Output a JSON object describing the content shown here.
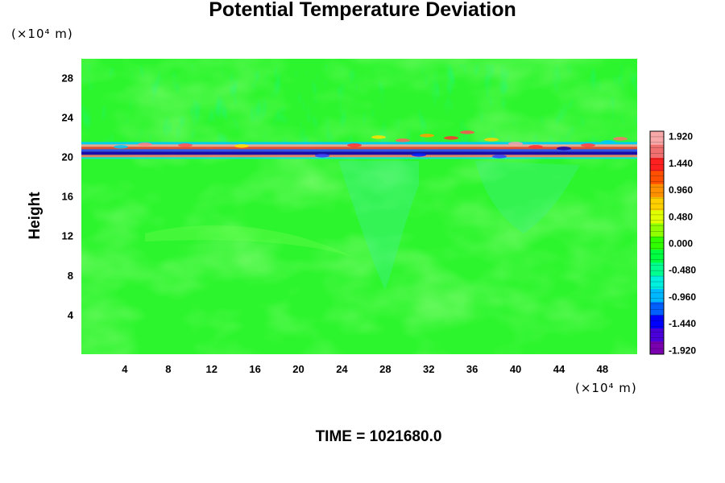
{
  "chart_data": {
    "type": "heatmap",
    "title": "Potential Temperature Deviation",
    "ylabel": "Height",
    "y_unit_label": "(×10⁴ m)",
    "x_unit_label": "(×10⁴ m)",
    "footer": "TIME = 1021680.0",
    "xlim": [
      0,
      51.2
    ],
    "ylim": [
      0,
      29.9
    ],
    "x_ticks": [
      4,
      8,
      12,
      16,
      20,
      24,
      28,
      32,
      36,
      40,
      44,
      48
    ],
    "y_ticks": [
      4,
      8,
      12,
      16,
      20,
      24,
      28
    ],
    "colorbar": {
      "range": [
        -2.0,
        2.0
      ],
      "tick_labels": [
        "1.920",
        "1.440",
        "0.960",
        "0.480",
        "0.000",
        "-0.480",
        "-0.960",
        "-1.440",
        "-1.920"
      ],
      "colors": [
        "#7a00b0",
        "#4a00d8",
        "#0000ff",
        "#0060ff",
        "#00b8ff",
        "#00f0e0",
        "#00ff90",
        "#00ff40",
        "#30ff00",
        "#90ff00",
        "#e0ff00",
        "#ffd000",
        "#ff9000",
        "#ff5000",
        "#ff2020",
        "#f07070",
        "#f8a8a8"
      ]
    },
    "background_value": 0.0,
    "features": [
      {
        "name": "perturbation layer",
        "y_center": 20.5,
        "x_range": [
          0,
          51.2
        ],
        "note": "banded positive/negative deviations, amplitude about ±1.9"
      }
    ]
  }
}
